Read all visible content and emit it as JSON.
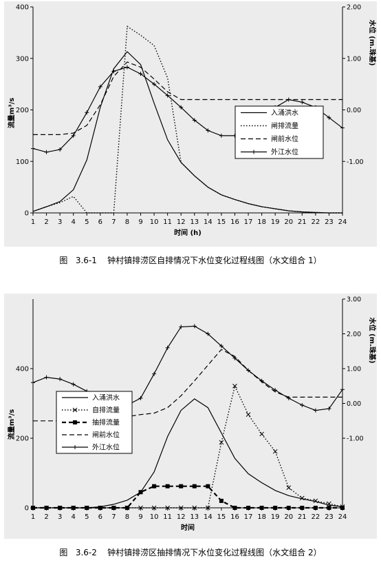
{
  "chart_data": [
    {
      "type": "line",
      "caption": "图   3.6-1    钟村镇排涝区自排情况下水位变化过程线图（水文组合 1）",
      "xlabel": "时间 (h)",
      "ylabel": "流量m³/s",
      "y2label": "水位 (m.珠基)",
      "x": [
        1,
        2,
        3,
        4,
        5,
        6,
        7,
        8,
        9,
        10,
        11,
        12,
        13,
        14,
        15,
        16,
        17,
        18,
        19,
        20,
        21,
        22,
        23,
        24
      ],
      "xlim": [
        1,
        24
      ],
      "ylim": [
        0,
        400
      ],
      "yticks": [
        "0",
        "100",
        "200",
        "300",
        "400"
      ],
      "y2lim": [
        -2.0,
        2.0
      ],
      "y2ticks": [
        "2.00",
        "1.00",
        "0.00",
        "-1.00"
      ],
      "legend": "middle-right",
      "series": [
        {
          "name": "入涌洪水",
          "axis": "left",
          "style": "solid",
          "marker": "none",
          "values": [
            3,
            12,
            22,
            45,
            103,
            205,
            280,
            313,
            288,
            213,
            142,
            98,
            72,
            50,
            35,
            26,
            18,
            12,
            8,
            4,
            2,
            1,
            0,
            0
          ]
        },
        {
          "name": "闸排流量",
          "axis": "left",
          "style": "dotted",
          "marker": "none",
          "values": [
            3,
            12,
            20,
            32,
            0,
            0,
            0,
            362,
            345,
            325,
            262,
            98,
            72,
            50,
            35,
            26,
            18,
            12,
            8,
            4,
            2,
            1,
            0,
            0
          ]
        },
        {
          "name": "闸前水位",
          "axis": "right",
          "style": "dashed",
          "marker": "none",
          "values": [
            -0.48,
            -0.48,
            -0.48,
            -0.45,
            -0.3,
            0.1,
            0.65,
            0.93,
            0.83,
            0.6,
            0.35,
            0.2,
            0.2,
            0.2,
            0.2,
            0.2,
            0.2,
            0.2,
            0.2,
            0.2,
            0.2,
            0.2,
            0.2,
            0.2
          ]
        },
        {
          "name": "外江水位",
          "axis": "right",
          "style": "solid",
          "marker": "plus",
          "values": [
            -0.75,
            -0.82,
            -0.77,
            -0.5,
            -0.05,
            0.45,
            0.75,
            0.83,
            0.7,
            0.5,
            0.28,
            0.05,
            -0.2,
            -0.4,
            -0.5,
            -0.5,
            -0.38,
            -0.2,
            0.05,
            0.2,
            0.15,
            0.05,
            -0.15,
            -0.35
          ]
        }
      ]
    },
    {
      "type": "line",
      "caption": "图   3.6-2    钟村镇排涝区抽排情况下水位变化过程线图（水文组合 2）",
      "xlabel": "时间",
      "ylabel": "流量m³/s",
      "y2label": "水位 (m.珠基)",
      "x": [
        1,
        2,
        3,
        4,
        5,
        6,
        7,
        8,
        9,
        10,
        11,
        12,
        13,
        14,
        15,
        16,
        17,
        18,
        19,
        20,
        21,
        22,
        23,
        24
      ],
      "xlim": [
        1,
        24
      ],
      "ylim": [
        0,
        600
      ],
      "yticks": [
        "0",
        "200",
        "400"
      ],
      "y2lim": [
        -3.0,
        3.0
      ],
      "y2ticks": [
        "3.00",
        "2.00",
        "1.00",
        "0.00",
        "-1.00"
      ],
      "legend": "left",
      "series": [
        {
          "name": "入涌洪水",
          "axis": "left",
          "style": "solid",
          "marker": "none",
          "values": [
            0,
            0,
            0,
            0,
            0,
            3,
            10,
            22,
            45,
            103,
            205,
            280,
            313,
            288,
            215,
            142,
            98,
            72,
            50,
            35,
            26,
            18,
            8,
            3
          ]
        },
        {
          "name": "自排流量",
          "axis": "left",
          "style": "dotted",
          "marker": "x",
          "values": [
            0,
            0,
            0,
            0,
            0,
            0,
            0,
            0,
            0,
            0,
            0,
            0,
            0,
            0,
            188,
            350,
            268,
            212,
            162,
            58,
            28,
            20,
            12,
            3
          ]
        },
        {
          "name": "抽排流量",
          "axis": "left",
          "style": "dashed-bold",
          "marker": "square",
          "values": [
            0,
            0,
            0,
            0,
            0,
            0,
            0,
            0,
            45,
            62,
            62,
            62,
            62,
            62,
            20,
            0,
            0,
            0,
            0,
            0,
            0,
            0,
            0,
            0
          ]
        },
        {
          "name": "闸前水位",
          "axis": "right",
          "style": "dashed",
          "marker": "none",
          "values": [
            -0.5,
            -0.5,
            -0.5,
            -0.5,
            -0.48,
            -0.45,
            -0.42,
            -0.38,
            -0.32,
            -0.28,
            -0.12,
            0.22,
            0.65,
            1.1,
            1.55,
            1.35,
            0.95,
            0.62,
            0.33,
            0.18,
            0.18,
            0.18,
            0.18,
            0.18
          ]
        },
        {
          "name": "外江水位",
          "axis": "right",
          "style": "solid",
          "marker": "plus",
          "values": [
            0.6,
            0.75,
            0.7,
            0.55,
            0.35,
            0.15,
            0.02,
            -0.05,
            0.15,
            0.85,
            1.6,
            2.2,
            2.22,
            2.0,
            1.65,
            1.3,
            0.95,
            0.65,
            0.38,
            0.15,
            -0.05,
            -0.2,
            -0.15,
            0.4
          ]
        }
      ]
    }
  ]
}
